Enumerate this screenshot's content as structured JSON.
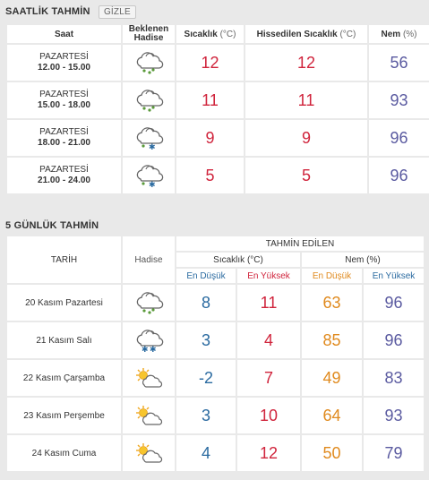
{
  "hourly": {
    "title": "SAATLİK TAHMİN",
    "hide_label": "GİZLE",
    "headers": {
      "time": "Saat",
      "event_line1": "Beklenen",
      "event_line2": "Hadise",
      "temp": "Sıcaklık",
      "temp_unit": "(°C)",
      "feels": "Hissedilen Sıcaklık",
      "feels_unit": "(°C)",
      "humidity": "Nem",
      "humidity_unit": "(%)"
    },
    "rows": [
      {
        "day": "PAZARTESİ",
        "range": "12.00 - 15.00",
        "icon": "rain-cloud-icon",
        "temp": "12",
        "feels": "12",
        "humidity": "56"
      },
      {
        "day": "PAZARTESİ",
        "range": "15.00 - 18.00",
        "icon": "rain-cloud-icon",
        "temp": "11",
        "feels": "11",
        "humidity": "93"
      },
      {
        "day": "PAZARTESİ",
        "range": "18.00 - 21.00",
        "icon": "sleet-cloud-icon",
        "temp": "9",
        "feels": "9",
        "humidity": "96"
      },
      {
        "day": "PAZARTESİ",
        "range": "21.00 - 24.00",
        "icon": "sleet-cloud-icon",
        "temp": "5",
        "feels": "5",
        "humidity": "96"
      }
    ]
  },
  "daily": {
    "title": "5 GÜNLÜK TAHMİN",
    "headers": {
      "date": "TARİH",
      "event": "Hadise",
      "forecast": "TAHMİN EDİLEN",
      "temp": "Sıcaklık (°C)",
      "humidity": "Nem (%)",
      "min": "En Düşük",
      "max": "En Yüksek"
    },
    "rows": [
      {
        "date": "20 Kasım Pazartesi",
        "icon": "rain-cloud-icon",
        "temp_min": "8",
        "temp_max": "11",
        "hum_min": "63",
        "hum_max": "96"
      },
      {
        "date": "21 Kasım Salı",
        "icon": "snow-cloud-icon",
        "temp_min": "3",
        "temp_max": "4",
        "hum_min": "85",
        "hum_max": "96"
      },
      {
        "date": "22 Kasım Çarşamba",
        "icon": "partly-cloudy-icon",
        "temp_min": "-2",
        "temp_max": "7",
        "hum_min": "49",
        "hum_max": "83"
      },
      {
        "date": "23 Kasım Perşembe",
        "icon": "partly-cloudy-icon",
        "temp_min": "3",
        "temp_max": "10",
        "hum_min": "64",
        "hum_max": "93"
      },
      {
        "date": "24 Kasım Cuma",
        "icon": "partly-cloudy-icon",
        "temp_min": "4",
        "temp_max": "12",
        "hum_min": "50",
        "hum_max": "79"
      }
    ]
  },
  "colors": {
    "temp": "#d0243c",
    "humidity": "#5a5aa0",
    "temp_min": "#2a6aa0",
    "hum_min": "#e08a1e"
  }
}
